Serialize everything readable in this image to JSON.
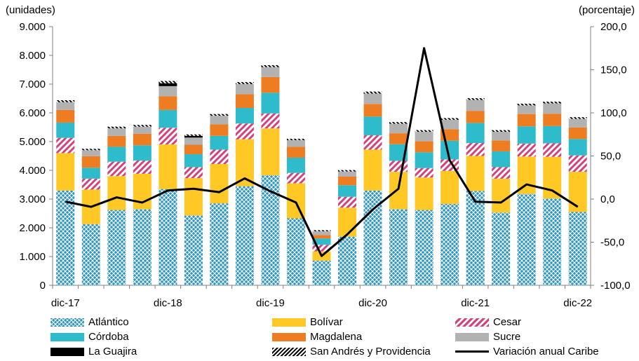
{
  "chart_data": {
    "type": "bar",
    "stacked": true,
    "left_axis_unit": "(unidades)",
    "right_axis_unit": "(porcentaje)",
    "ylim": [
      0,
      9000
    ],
    "y2lim": [
      -100,
      200
    ],
    "yticks": [
      "0",
      "1.000",
      "2.000",
      "3.000",
      "4.000",
      "5.000",
      "6.000",
      "7.000",
      "8.000",
      "9.000"
    ],
    "y2ticks": [
      "-100,0",
      "-50,0",
      "0,0",
      "50,0",
      "100,0",
      "150,0",
      "200,0"
    ],
    "x_tick_labels": [
      {
        "index": 0,
        "label": "dic-17"
      },
      {
        "index": 4,
        "label": "dic-18"
      },
      {
        "index": 8,
        "label": "dic-19"
      },
      {
        "index": 12,
        "label": "dic-20"
      },
      {
        "index": 16,
        "label": "dic-21"
      },
      {
        "index": 20,
        "label": "dic-22"
      }
    ],
    "periods": 21,
    "series": [
      {
        "name": "Atlántico",
        "color": "#2e95c4",
        "pattern": "crosshatch",
        "values": [
          3300,
          2130,
          2620,
          2650,
          3350,
          2430,
          2850,
          3450,
          3830,
          2330,
          860,
          1700,
          3300,
          2650,
          2620,
          2830,
          3280,
          2530,
          3180,
          3020,
          2550
        ]
      },
      {
        "name": "Bolívar",
        "color": "#ffc825",
        "pattern": "solid",
        "values": [
          1300,
          1200,
          1180,
          1230,
          1550,
          1300,
          1370,
          1630,
          1630,
          1220,
          320,
          1000,
          1420,
          1300,
          1130,
          1150,
          1220,
          1180,
          1300,
          1450,
          1400
        ]
      },
      {
        "name": "Cesar",
        "color": "#d3427c",
        "pattern": "diagonal",
        "values": [
          530,
          380,
          500,
          460,
          580,
          380,
          500,
          550,
          520,
          360,
          230,
          380,
          500,
          380,
          330,
          400,
          450,
          400,
          450,
          470,
          570
        ]
      },
      {
        "name": "Córdoba",
        "color": "#2ebccd",
        "pattern": "solid",
        "values": [
          530,
          380,
          520,
          530,
          620,
          450,
          480,
          540,
          720,
          530,
          220,
          400,
          650,
          580,
          550,
          650,
          700,
          550,
          600,
          600,
          570
        ]
      },
      {
        "name": "Magdalena",
        "color": "#ee7d22",
        "pattern": "solid",
        "values": [
          440,
          400,
          380,
          400,
          480,
          330,
          400,
          480,
          550,
          380,
          120,
          300,
          440,
          380,
          380,
          400,
          420,
          380,
          430,
          430,
          400
        ]
      },
      {
        "name": "Sucre",
        "color": "#b2b2b2",
        "pattern": "solid",
        "values": [
          270,
          210,
          260,
          250,
          350,
          250,
          300,
          350,
          340,
          230,
          130,
          180,
          360,
          330,
          330,
          330,
          380,
          300,
          300,
          360,
          300
        ]
      },
      {
        "name": "La Guajira",
        "color": "#000000",
        "pattern": "solid",
        "values": [
          0,
          0,
          0,
          0,
          100,
          60,
          0,
          0,
          0,
          0,
          0,
          0,
          0,
          0,
          0,
          0,
          0,
          0,
          0,
          0,
          0
        ]
      },
      {
        "name": "San Andrés y Providencia",
        "color": "#000000",
        "pattern": "stripes",
        "values": [
          70,
          50,
          60,
          60,
          80,
          50,
          60,
          70,
          70,
          50,
          40,
          50,
          70,
          60,
          60,
          60,
          60,
          60,
          60,
          60,
          60
        ]
      }
    ],
    "line_series": {
      "name": "Variación anual Caribe",
      "color": "#000000",
      "axis": "right",
      "values": [
        -3,
        -9,
        2,
        -4,
        10,
        12,
        8,
        24,
        9,
        -4,
        -66,
        -41,
        -12,
        12,
        175,
        45,
        -3,
        -4,
        17,
        10,
        -9
      ]
    },
    "legend": [
      "Atlántico",
      "Bolívar",
      "Cesar",
      "Córdoba",
      "Magdalena",
      "Sucre",
      "La Guajira",
      "San Andrés y Providencia",
      "Variación anual Caribe"
    ],
    "legend_position": "bottom",
    "grid": false
  }
}
